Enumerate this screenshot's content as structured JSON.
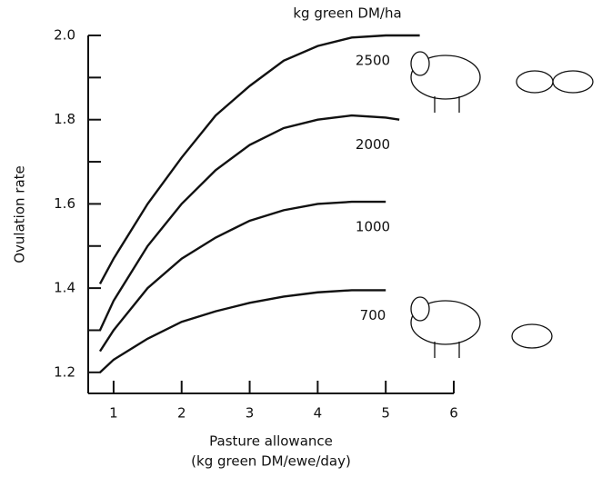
{
  "chart_data": {
    "type": "line",
    "legend_title": "kg green DM/ha",
    "x_label": "Pasture allowance",
    "x_label_2": "(kg green DM/ewe/day)",
    "y_label": "Ovulation rate",
    "xlim": [
      0.6,
      6
    ],
    "xticks": [
      1,
      2,
      3,
      4,
      5,
      6
    ],
    "ylim": [
      1.15,
      2.0
    ],
    "yticks": [
      {
        "value": 1.2,
        "label": "1.2"
      },
      {
        "value": 1.4,
        "label": "1.4"
      },
      {
        "value": 1.6,
        "label": "1.6"
      },
      {
        "value": 1.8,
        "label": "1.8"
      },
      {
        "value": 2.0,
        "label": "2.0"
      }
    ],
    "y_minor_ticks": [
      1.3,
      1.5,
      1.7,
      1.9
    ],
    "grid": false,
    "series": [
      {
        "name": "2500",
        "color": "#111111",
        "x": [
          0.8,
          1,
          1.5,
          2,
          2.5,
          3,
          3.5,
          4,
          4.5,
          5,
          5.5
        ],
        "values": [
          1.41,
          1.47,
          1.6,
          1.71,
          1.81,
          1.88,
          1.94,
          1.975,
          1.995,
          2.0,
          2.0
        ]
      },
      {
        "name": "2000",
        "color": "#111111",
        "x": [
          0.8,
          1,
          1.5,
          2,
          2.5,
          3,
          3.5,
          4,
          4.5,
          5,
          5.2
        ],
        "values": [
          1.3,
          1.37,
          1.5,
          1.6,
          1.68,
          1.74,
          1.78,
          1.8,
          1.81,
          1.805,
          1.8
        ]
      },
      {
        "name": "1000",
        "color": "#111111",
        "x": [
          0.8,
          1,
          1.5,
          2,
          2.5,
          3,
          3.5,
          4,
          4.5,
          5
        ],
        "values": [
          1.25,
          1.3,
          1.4,
          1.47,
          1.52,
          1.56,
          1.585,
          1.6,
          1.605,
          1.605
        ]
      },
      {
        "name": "700",
        "color": "#111111",
        "x": [
          0.8,
          1,
          1.5,
          2,
          2.5,
          3,
          3.5,
          4,
          4.5,
          5
        ],
        "values": [
          1.2,
          1.23,
          1.28,
          1.32,
          1.345,
          1.365,
          1.38,
          1.39,
          1.395,
          1.395
        ]
      }
    ]
  }
}
